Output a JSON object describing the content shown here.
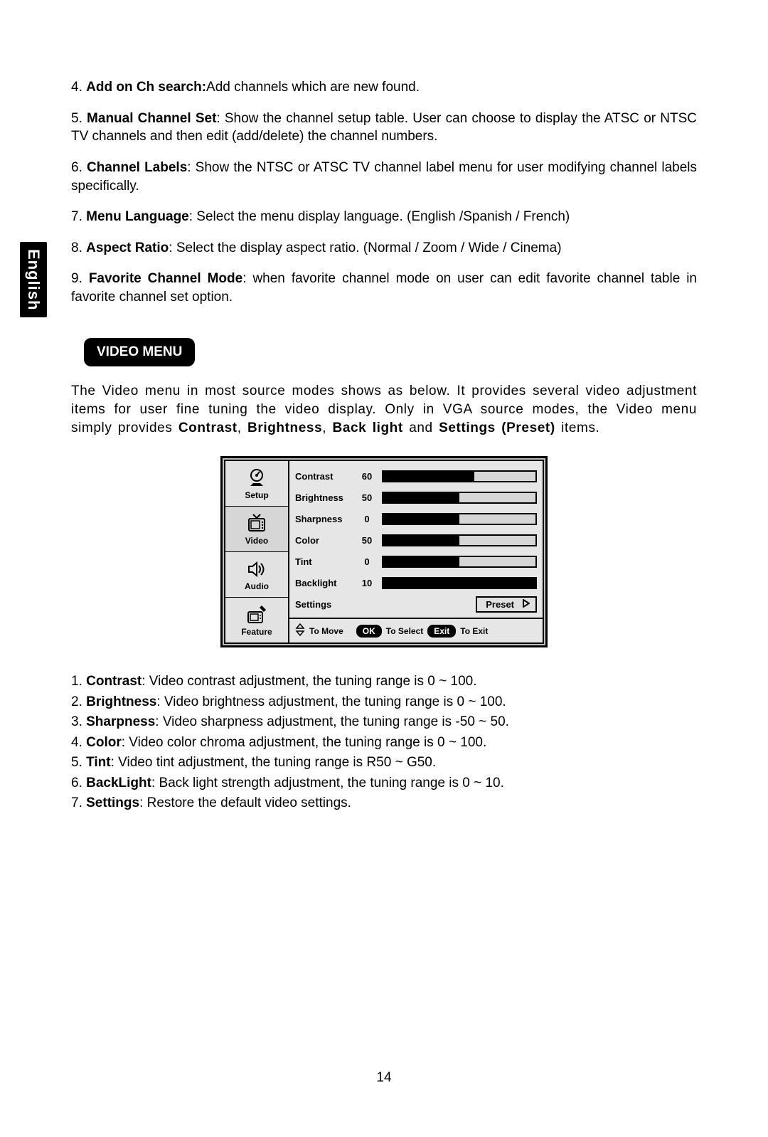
{
  "language_tab": "English",
  "top_items": [
    {
      "num": "4.",
      "term": "Add on Ch search:",
      "text": "Add channels which are new found."
    },
    {
      "num": "5.",
      "term": "Manual Channel Set",
      "text": ": Show the channel setup table. User can choose to display the ATSC or NTSC TV channels and then edit (add/delete) the channel numbers."
    },
    {
      "num": "6.",
      "term": "Channel Labels",
      "text": ": Show the NTSC or ATSC TV channel label menu for user modifying channel labels specifically."
    },
    {
      "num": "7.",
      "term": "Menu Language",
      "text": ": Select the menu display language. (English /Spanish / French)"
    },
    {
      "num": "8.",
      "term": "Aspect Ratio",
      "text": ": Select the display aspect ratio. (Normal / Zoom / Wide / Cinema)"
    },
    {
      "num": "9.",
      "term": "Favorite Channel Mode",
      "text": ": when favorite channel mode on user can edit favorite channel table in favorite channel set option."
    }
  ],
  "section_title": "VIDEO MENU",
  "intro_para_pre": "The Video menu in most source modes shows as below. It provides several video adjustment items for user fine tuning the video display. Only in VGA source modes, the Video menu simply provides ",
  "intro_b1": "Contrast",
  "intro_b2": "Brightness",
  "intro_b3": "Back light",
  "intro_b4": "Settings (Preset)",
  "intro_tail": " items.",
  "sidebar": [
    {
      "label": "Setup",
      "icon": "setup"
    },
    {
      "label": "Video",
      "icon": "video"
    },
    {
      "label": "Audio",
      "icon": "audio"
    },
    {
      "label": "Feature",
      "icon": "feature"
    }
  ],
  "settings_rows": [
    {
      "label": "Contrast",
      "value": "60",
      "fill_pct": 60
    },
    {
      "label": "Brightness",
      "value": "50",
      "fill_pct": 50
    },
    {
      "label": "Sharpness",
      "value": "0",
      "fill_pct": 50
    },
    {
      "label": "Color",
      "value": "50",
      "fill_pct": 50
    },
    {
      "label": "Tint",
      "value": "0",
      "fill_pct": 50
    },
    {
      "label": "Backlight",
      "value": "10",
      "fill_pct": 100
    }
  ],
  "settings_label": "Settings",
  "preset_label": "Preset",
  "nav": {
    "to_move": "To Move",
    "ok": "OK",
    "to_select": "To Select",
    "exit": "Exit",
    "to_exit": "To Exit"
  },
  "bottom_items": [
    {
      "num": "1.",
      "term": "Contrast",
      "text": ": Video contrast adjustment, the tuning range is 0 ~ 100."
    },
    {
      "num": "2.",
      "term": "Brightness",
      "text": ": Video brightness adjustment, the tuning range is 0 ~ 100."
    },
    {
      "num": "3.",
      "term": "Sharpness",
      "text": ": Video sharpness adjustment, the tuning range is -50 ~ 50."
    },
    {
      "num": "4.",
      "term": "Color",
      "text": ": Video color chroma adjustment, the tuning range is 0 ~ 100."
    },
    {
      "num": "5.",
      "term": "Tint",
      "text": ": Video tint adjustment, the tuning range is R50 ~ G50."
    },
    {
      "num": "6.",
      "term": "BackLight",
      "text": ": Back light strength adjustment, the tuning range is 0 ~ 10."
    },
    {
      "num": "7.",
      "term": "Settings",
      "text": ": Restore the default video settings."
    }
  ],
  "page_number": "14"
}
